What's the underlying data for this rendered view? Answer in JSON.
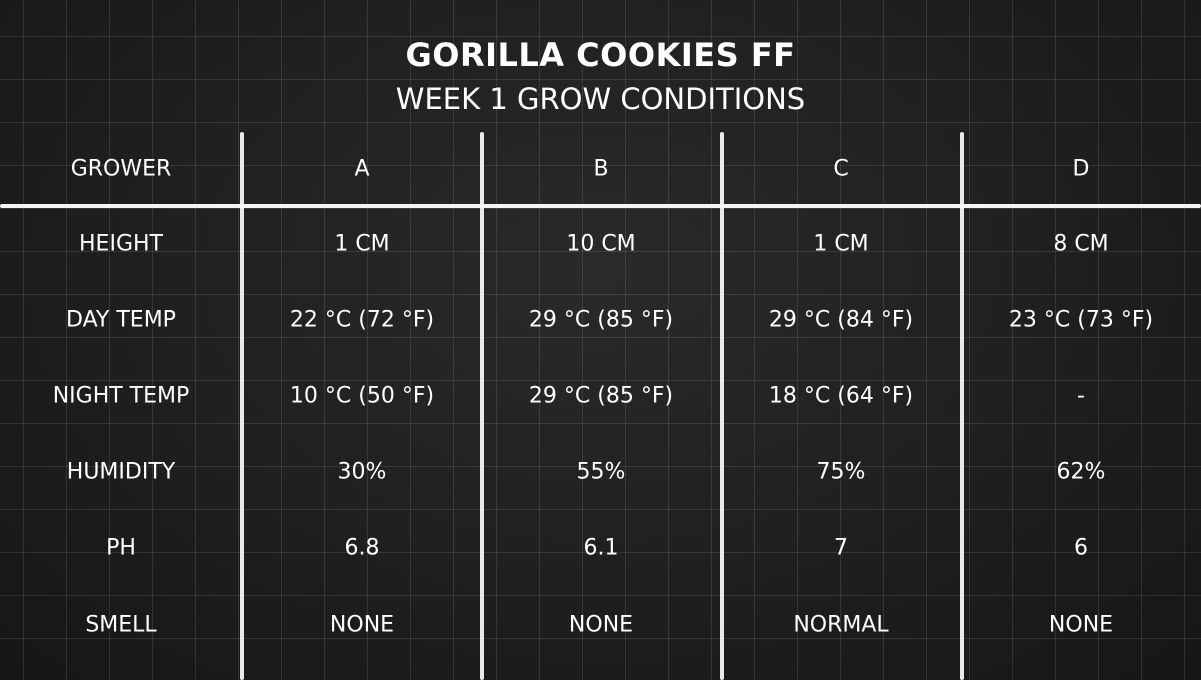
{
  "title": "GORILLA COOKIES FF",
  "subtitle": "WEEK 1 GROW CONDITIONS",
  "table": {
    "header": [
      "GROWER",
      "A",
      "B",
      "C",
      "D"
    ],
    "rows": [
      [
        "HEIGHT",
        "1 CM",
        "10 CM",
        "1 CM",
        "8 CM"
      ],
      [
        "DAY TEMP",
        "22 °C (72 °F)",
        "29 °C (85 °F)",
        "29 °C (84 °F)",
        "23 °C (73 °F)"
      ],
      [
        "NIGHT TEMP",
        "10 °C (50 °F)",
        "29 °C (85 °F)",
        "18 °C (64 °F)",
        "-"
      ],
      [
        "HUMIDITY",
        "30%",
        "55%",
        "75%",
        "62%"
      ],
      [
        "PH",
        "6.8",
        "6.1",
        "7",
        "6"
      ],
      [
        "SMELL",
        "NONE",
        "NONE",
        "NORMAL",
        "NONE"
      ]
    ]
  }
}
